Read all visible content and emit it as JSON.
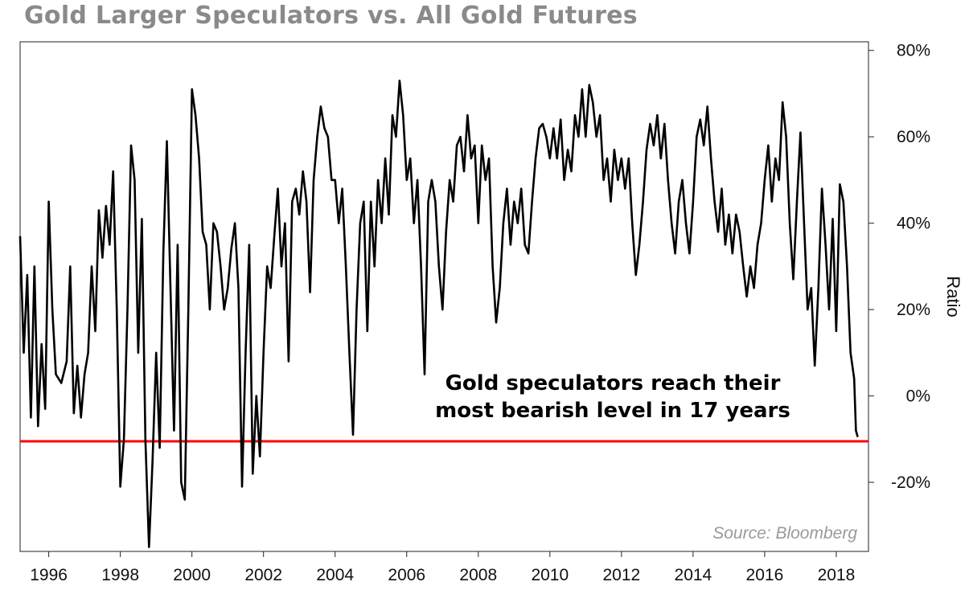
{
  "chart_data": {
    "type": "line",
    "title": "Gold Larger Speculators vs. All Gold Futures",
    "ylabel": "Ratio",
    "xlabel": "",
    "source": "Source: Bloomberg",
    "annotation_lines": [
      "Gold speculators reach their",
      "most bearish level in 17 years"
    ],
    "xlim": [
      1995.2,
      2018.9
    ],
    "ylim": [
      -36,
      82
    ],
    "x_ticks": [
      1996,
      1998,
      2000,
      2002,
      2004,
      2006,
      2008,
      2010,
      2012,
      2014,
      2016,
      2018
    ],
    "x_tick_labels": [
      "1996",
      "1998",
      "2000",
      "2002",
      "2004",
      "2006",
      "2008",
      "2010",
      "2012",
      "2014",
      "2016",
      "2018"
    ],
    "y_ticks": [
      80,
      60,
      40,
      20,
      0,
      -20
    ],
    "y_tick_labels": [
      "80%",
      "60%",
      "40%",
      "20%",
      "0%",
      "-20%"
    ],
    "y_axis_side": "right",
    "grid": false,
    "reference_line": {
      "y": -10.5,
      "color": "#ff0000"
    },
    "series": [
      {
        "color": "#000000",
        "points": [
          [
            1995.2,
            37
          ],
          [
            1995.3,
            10
          ],
          [
            1995.4,
            28
          ],
          [
            1995.5,
            -5
          ],
          [
            1995.6,
            30
          ],
          [
            1995.7,
            -7
          ],
          [
            1995.8,
            12
          ],
          [
            1995.9,
            -3
          ],
          [
            1996.0,
            45
          ],
          [
            1996.1,
            20
          ],
          [
            1996.2,
            5
          ],
          [
            1996.35,
            3
          ],
          [
            1996.5,
            8
          ],
          [
            1996.6,
            30
          ],
          [
            1996.7,
            -4
          ],
          [
            1996.8,
            7
          ],
          [
            1996.9,
            -5
          ],
          [
            1997.0,
            5
          ],
          [
            1997.1,
            10
          ],
          [
            1997.2,
            30
          ],
          [
            1997.3,
            15
          ],
          [
            1997.4,
            43
          ],
          [
            1997.5,
            32
          ],
          [
            1997.6,
            44
          ],
          [
            1997.7,
            35
          ],
          [
            1997.8,
            52
          ],
          [
            1997.9,
            20
          ],
          [
            1998.0,
            -21
          ],
          [
            1998.1,
            -10
          ],
          [
            1998.2,
            20
          ],
          [
            1998.3,
            58
          ],
          [
            1998.4,
            50
          ],
          [
            1998.5,
            10
          ],
          [
            1998.6,
            41
          ],
          [
            1998.7,
            -10
          ],
          [
            1998.8,
            -35
          ],
          [
            1998.9,
            -15
          ],
          [
            1999.0,
            10
          ],
          [
            1999.1,
            -12
          ],
          [
            1999.2,
            33
          ],
          [
            1999.3,
            59
          ],
          [
            1999.4,
            25
          ],
          [
            1999.5,
            -8
          ],
          [
            1999.6,
            35
          ],
          [
            1999.7,
            -20
          ],
          [
            1999.8,
            -24
          ],
          [
            1999.9,
            20
          ],
          [
            2000.0,
            71
          ],
          [
            2000.1,
            65
          ],
          [
            2000.2,
            55
          ],
          [
            2000.3,
            38
          ],
          [
            2000.4,
            35
          ],
          [
            2000.5,
            20
          ],
          [
            2000.6,
            40
          ],
          [
            2000.7,
            38
          ],
          [
            2000.8,
            30
          ],
          [
            2000.9,
            20
          ],
          [
            2001.0,
            25
          ],
          [
            2001.1,
            34
          ],
          [
            2001.2,
            40
          ],
          [
            2001.3,
            25
          ],
          [
            2001.4,
            -21
          ],
          [
            2001.5,
            10
          ],
          [
            2001.6,
            35
          ],
          [
            2001.7,
            -18
          ],
          [
            2001.8,
            0
          ],
          [
            2001.9,
            -14
          ],
          [
            2002.0,
            10
          ],
          [
            2002.1,
            30
          ],
          [
            2002.2,
            25
          ],
          [
            2002.3,
            37
          ],
          [
            2002.4,
            48
          ],
          [
            2002.5,
            30
          ],
          [
            2002.6,
            40
          ],
          [
            2002.7,
            8
          ],
          [
            2002.8,
            45
          ],
          [
            2002.9,
            48
          ],
          [
            2003.0,
            42
          ],
          [
            2003.1,
            52
          ],
          [
            2003.2,
            45
          ],
          [
            2003.3,
            24
          ],
          [
            2003.4,
            50
          ],
          [
            2003.5,
            60
          ],
          [
            2003.6,
            67
          ],
          [
            2003.7,
            62
          ],
          [
            2003.8,
            60
          ],
          [
            2003.9,
            50
          ],
          [
            2004.0,
            50
          ],
          [
            2004.1,
            40
          ],
          [
            2004.2,
            48
          ],
          [
            2004.3,
            30
          ],
          [
            2004.4,
            10
          ],
          [
            2004.5,
            -9
          ],
          [
            2004.6,
            20
          ],
          [
            2004.7,
            40
          ],
          [
            2004.8,
            45
          ],
          [
            2004.9,
            15
          ],
          [
            2005.0,
            45
          ],
          [
            2005.1,
            30
          ],
          [
            2005.2,
            50
          ],
          [
            2005.3,
            40
          ],
          [
            2005.4,
            55
          ],
          [
            2005.5,
            42
          ],
          [
            2005.6,
            65
          ],
          [
            2005.7,
            60
          ],
          [
            2005.8,
            73
          ],
          [
            2005.9,
            65
          ],
          [
            2006.0,
            50
          ],
          [
            2006.1,
            55
          ],
          [
            2006.2,
            40
          ],
          [
            2006.3,
            50
          ],
          [
            2006.4,
            30
          ],
          [
            2006.5,
            5
          ],
          [
            2006.6,
            45
          ],
          [
            2006.7,
            50
          ],
          [
            2006.8,
            45
          ],
          [
            2006.9,
            30
          ],
          [
            2007.0,
            20
          ],
          [
            2007.1,
            38
          ],
          [
            2007.2,
            50
          ],
          [
            2007.3,
            45
          ],
          [
            2007.4,
            58
          ],
          [
            2007.5,
            60
          ],
          [
            2007.6,
            52
          ],
          [
            2007.7,
            65
          ],
          [
            2007.8,
            55
          ],
          [
            2007.9,
            58
          ],
          [
            2008.0,
            40
          ],
          [
            2008.1,
            58
          ],
          [
            2008.2,
            50
          ],
          [
            2008.3,
            55
          ],
          [
            2008.4,
            30
          ],
          [
            2008.5,
            17
          ],
          [
            2008.6,
            25
          ],
          [
            2008.7,
            40
          ],
          [
            2008.8,
            48
          ],
          [
            2008.9,
            35
          ],
          [
            2009.0,
            45
          ],
          [
            2009.1,
            40
          ],
          [
            2009.2,
            48
          ],
          [
            2009.3,
            35
          ],
          [
            2009.4,
            33
          ],
          [
            2009.5,
            45
          ],
          [
            2009.6,
            55
          ],
          [
            2009.7,
            62
          ],
          [
            2009.8,
            63
          ],
          [
            2009.9,
            60
          ],
          [
            2010.0,
            55
          ],
          [
            2010.1,
            62
          ],
          [
            2010.2,
            55
          ],
          [
            2010.3,
            64
          ],
          [
            2010.4,
            50
          ],
          [
            2010.5,
            57
          ],
          [
            2010.6,
            52
          ],
          [
            2010.7,
            65
          ],
          [
            2010.8,
            60
          ],
          [
            2010.9,
            71
          ],
          [
            2011.0,
            60
          ],
          [
            2011.1,
            72
          ],
          [
            2011.2,
            68
          ],
          [
            2011.3,
            60
          ],
          [
            2011.4,
            65
          ],
          [
            2011.5,
            50
          ],
          [
            2011.6,
            55
          ],
          [
            2011.7,
            45
          ],
          [
            2011.8,
            57
          ],
          [
            2011.9,
            50
          ],
          [
            2012.0,
            55
          ],
          [
            2012.1,
            48
          ],
          [
            2012.2,
            55
          ],
          [
            2012.3,
            40
          ],
          [
            2012.4,
            28
          ],
          [
            2012.5,
            35
          ],
          [
            2012.6,
            45
          ],
          [
            2012.7,
            57
          ],
          [
            2012.8,
            63
          ],
          [
            2012.9,
            58
          ],
          [
            2013.0,
            65
          ],
          [
            2013.1,
            55
          ],
          [
            2013.2,
            63
          ],
          [
            2013.3,
            50
          ],
          [
            2013.4,
            40
          ],
          [
            2013.5,
            33
          ],
          [
            2013.6,
            45
          ],
          [
            2013.7,
            50
          ],
          [
            2013.8,
            40
          ],
          [
            2013.9,
            33
          ],
          [
            2014.0,
            45
          ],
          [
            2014.1,
            60
          ],
          [
            2014.2,
            64
          ],
          [
            2014.3,
            58
          ],
          [
            2014.4,
            67
          ],
          [
            2014.5,
            55
          ],
          [
            2014.6,
            45
          ],
          [
            2014.7,
            38
          ],
          [
            2014.8,
            48
          ],
          [
            2014.9,
            35
          ],
          [
            2015.0,
            42
          ],
          [
            2015.1,
            33
          ],
          [
            2015.2,
            42
          ],
          [
            2015.3,
            38
          ],
          [
            2015.4,
            30
          ],
          [
            2015.5,
            23
          ],
          [
            2015.6,
            30
          ],
          [
            2015.7,
            25
          ],
          [
            2015.8,
            35
          ],
          [
            2015.9,
            40
          ],
          [
            2016.0,
            50
          ],
          [
            2016.1,
            58
          ],
          [
            2016.2,
            45
          ],
          [
            2016.3,
            55
          ],
          [
            2016.4,
            50
          ],
          [
            2016.5,
            68
          ],
          [
            2016.6,
            60
          ],
          [
            2016.7,
            40
          ],
          [
            2016.8,
            27
          ],
          [
            2016.9,
            45
          ],
          [
            2017.0,
            61
          ],
          [
            2017.1,
            40
          ],
          [
            2017.2,
            20
          ],
          [
            2017.3,
            25
          ],
          [
            2017.4,
            7
          ],
          [
            2017.5,
            25
          ],
          [
            2017.6,
            48
          ],
          [
            2017.7,
            35
          ],
          [
            2017.8,
            20
          ],
          [
            2017.9,
            41
          ],
          [
            2018.0,
            15
          ],
          [
            2018.1,
            49
          ],
          [
            2018.2,
            45
          ],
          [
            2018.3,
            30
          ],
          [
            2018.4,
            10
          ],
          [
            2018.5,
            4
          ],
          [
            2018.55,
            -8
          ],
          [
            2018.6,
            -9.5
          ]
        ]
      }
    ]
  }
}
